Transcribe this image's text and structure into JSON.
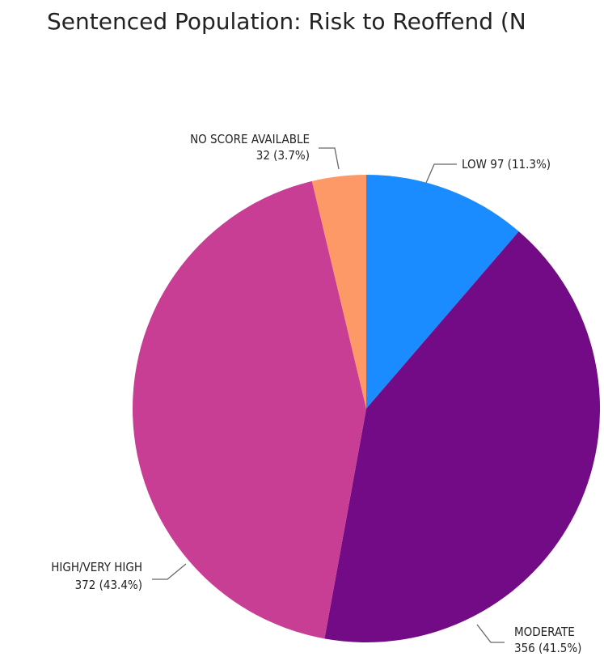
{
  "chart_data": {
    "type": "pie",
    "title": "Sentenced Population: Risk to Reoffend (N",
    "slices": [
      {
        "label": "LOW",
        "value": 97,
        "percent": "11.3%",
        "line1": "LOW 97 (11.3%)",
        "line2": "",
        "color": "#1a8cff"
      },
      {
        "label": "MODERATE",
        "value": 356,
        "percent": "41.5%",
        "line1": "MODERATE",
        "line2": "356 (41.5%)",
        "color": "#740b86"
      },
      {
        "label": "HIGH/VERY HIGH",
        "value": 372,
        "percent": "43.4%",
        "line1": "HIGH/VERY HIGH",
        "line2": "372 (43.4%)",
        "color": "#c73e94"
      },
      {
        "label": "NO SCORE AVAILABLE",
        "value": 32,
        "percent": "3.7%",
        "line1": "NO SCORE AVAILABLE",
        "line2": "32 (3.7%)",
        "color": "#fd9966"
      }
    ]
  }
}
